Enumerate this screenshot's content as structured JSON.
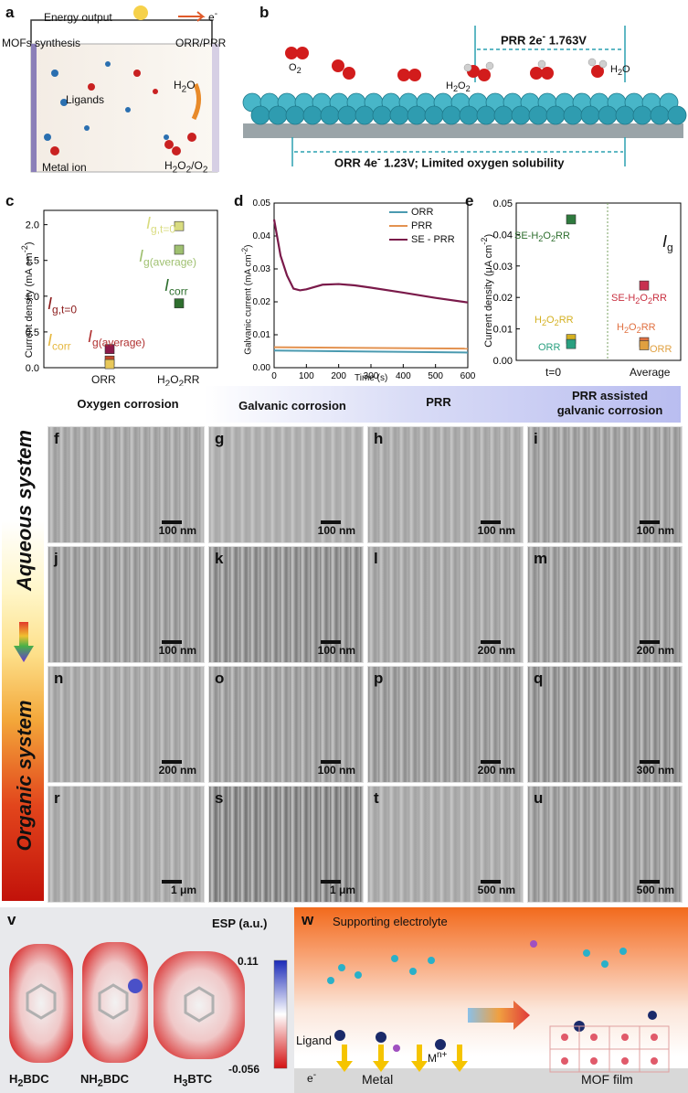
{
  "panel_a": {
    "letter": "a",
    "energy": "Energy output",
    "electron": "e",
    "mofs": "MOFs synthesis",
    "orr_prr": "ORR/PRR",
    "ligands": "Ligands",
    "metal_ion": "Metal ion",
    "h2o": "H",
    "h2o2": "H"
  },
  "panel_b": {
    "letter": "b",
    "prr": "PRR  2e",
    "prr_v": "1.763V",
    "orr": "ORR  4e",
    "orr_v": "1.23V; Limited oxygen solubility",
    "o2": "O",
    "h2o2": "H",
    "h2o": "H"
  },
  "chart_data": [
    {
      "panel": "c",
      "type": "scatter",
      "ylabel": "Current density (mA cm",
      "yticks": [
        "0.0",
        "0.5",
        "1.0",
        "1.5",
        "2.0"
      ],
      "ylim": [
        0,
        2.2
      ],
      "categories": [
        "ORR",
        "H2O2RR"
      ],
      "series": [
        {
          "name": "I_g,t=0",
          "values": [
            0.26,
            1.98
          ]
        },
        {
          "name": "I_g(average)",
          "values": [
            0.1,
            1.65
          ]
        },
        {
          "name": "I_corr",
          "values": [
            0.05,
            0.9
          ]
        }
      ]
    },
    {
      "panel": "d",
      "type": "line",
      "xlabel": "Time (s)",
      "ylabel": "Galvanic current (mA cm",
      "xlim": [
        0,
        600
      ],
      "ylim": [
        0,
        0.05
      ],
      "xticks": [
        "0",
        "100",
        "200",
        "300",
        "400",
        "500",
        "600"
      ],
      "yticks": [
        "0.00",
        "0.01",
        "0.02",
        "0.03",
        "0.04",
        "0.05"
      ],
      "series": [
        {
          "name": "ORR",
          "x": [
            0,
            600
          ],
          "y": [
            0.0052,
            0.0046
          ]
        },
        {
          "name": "PRR",
          "x": [
            0,
            600
          ],
          "y": [
            0.0062,
            0.0058
          ]
        },
        {
          "name": "SE - PRR",
          "x": [
            0,
            20,
            40,
            60,
            80,
            100,
            150,
            200,
            250,
            300,
            400,
            500,
            600
          ],
          "y": [
            0.045,
            0.034,
            0.028,
            0.024,
            0.0235,
            0.0238,
            0.0252,
            0.0254,
            0.025,
            0.0243,
            0.0228,
            0.0212,
            0.0198
          ]
        }
      ]
    },
    {
      "panel": "e",
      "type": "scatter",
      "ylabel": "Current density (μA cm",
      "yticks": [
        "0.00",
        "0.01",
        "0.02",
        "0.03",
        "0.04",
        "0.05"
      ],
      "ylim": [
        0,
        0.05
      ],
      "categories": [
        "t=0",
        "Average"
      ],
      "series": [
        {
          "name": "SE-H2O2RR",
          "values": [
            0.0448,
            0.0238
          ]
        },
        {
          "name": "H2O2RR",
          "values": [
            0.0068,
            0.0058
          ]
        },
        {
          "name": "ORR",
          "values": [
            0.0052,
            0.0048
          ]
        }
      ]
    }
  ],
  "panel_c": {
    "letter": "c",
    "ig_t0": "I",
    "ig_t0_sub": "g,t=0",
    "ig_avg": "I",
    "ig_avg_sub": "g(average)",
    "icorr": "I",
    "icorr_sub": "corr",
    "ig_t0_b": "I",
    "ig_t0_b_sub": "g,t=0",
    "ig_avg_b": "I",
    "ig_avg_b_sub": "g(average)",
    "icorr_b": "I",
    "icorr_b_sub": "corr",
    "cat1": "ORR",
    "cat2": "H",
    "cat2_tail": "RR",
    "yunit_tail": ")"
  },
  "panel_d": {
    "letter": "d",
    "leg_orr": "ORR",
    "leg_prr": "PRR",
    "leg_se": "SE - PRR",
    "yunit_tail": ")"
  },
  "panel_e": {
    "letter": "e",
    "ig": "I",
    "ig_sub": "g",
    "se_left": "SE-H",
    "se_left_tail": "RR",
    "h2o2rr_left": "H",
    "h2o2rr_left_tail": "RR",
    "orr_left": "ORR",
    "se_right": "SE-H",
    "se_right_tail": "RR",
    "h2o2rr_right": "H",
    "h2o2rr_right_tail": "RR",
    "orr_right": "ORR",
    "cat1": "t=0",
    "cat2": "Average",
    "yunit_tail": ")"
  },
  "headers": {
    "oxygen": "Oxygen corrosion",
    "galvanic": "Galvanic corrosion",
    "prr": "PRR",
    "prr_assisted_1": "PRR assisted",
    "prr_assisted_2": "galvanic corrosion"
  },
  "side": {
    "aqueous": "Aqueous system",
    "organic": "Organic system"
  },
  "sem": [
    {
      "l": "f",
      "s": "100 nm"
    },
    {
      "l": "g",
      "s": "100 nm"
    },
    {
      "l": "h",
      "s": "100 nm"
    },
    {
      "l": "i",
      "s": "100 nm"
    },
    {
      "l": "j",
      "s": "100 nm"
    },
    {
      "l": "k",
      "s": "100 nm"
    },
    {
      "l": "l",
      "s": "200 nm"
    },
    {
      "l": "m",
      "s": "200 nm"
    },
    {
      "l": "n",
      "s": "200 nm"
    },
    {
      "l": "o",
      "s": "100 nm"
    },
    {
      "l": "p",
      "s": "200 nm"
    },
    {
      "l": "q",
      "s": "300 nm"
    },
    {
      "l": "r",
      "s": "1 μm"
    },
    {
      "l": "s",
      "s": "1 μm"
    },
    {
      "l": "t",
      "s": "500 nm"
    },
    {
      "l": "u",
      "s": "500 nm"
    }
  ],
  "panel_v": {
    "letter": "v",
    "esp": "ESP (a.u.)",
    "max": "0.11",
    "min": "-0.056",
    "m1": "H",
    "m1_tail": "BDC",
    "m2": "NH",
    "m2_tail": "BDC",
    "m3": "H",
    "m3_tail": "BTC"
  },
  "panel_w": {
    "letter": "w",
    "supporting": "Supporting electrolyte",
    "ligand": "Ligand",
    "metal": "Metal",
    "mof": "MOF film",
    "mn": "M",
    "e": "e"
  }
}
